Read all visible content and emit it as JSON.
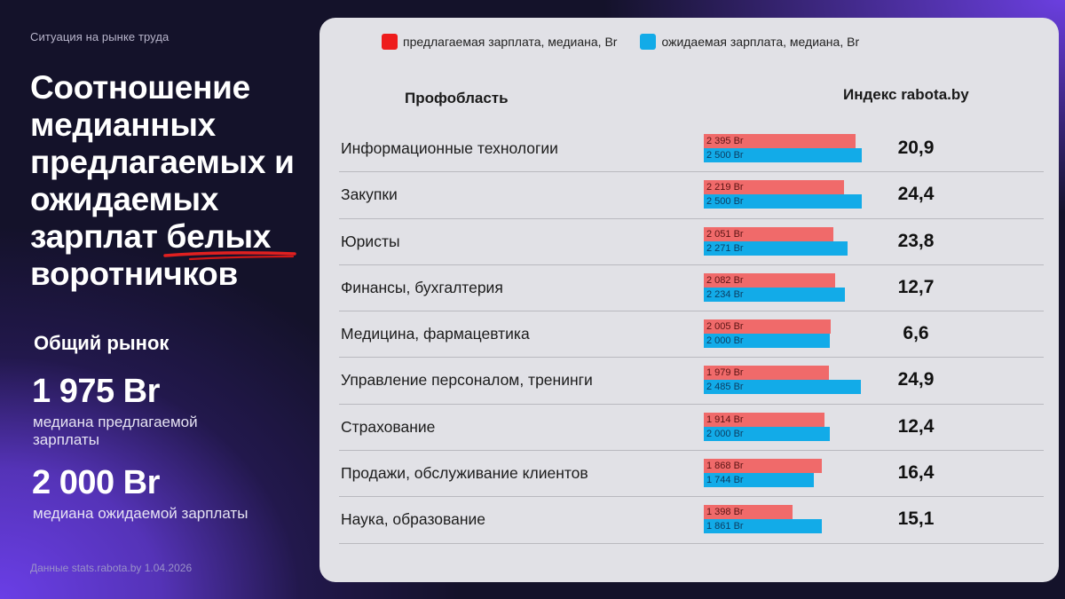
{
  "left": {
    "kicker": "Ситуация на рынке труда",
    "headline": {
      "line1": "Соотношение",
      "line2": "медианных",
      "line3": "предлагаемых и",
      "line4": "ожидаемых",
      "line5_prefix": "зарплат ",
      "line5_underlined": "белых",
      "line6": "воротничков",
      "underline_color": "#e02020"
    },
    "market_title": "Общий рынок",
    "stats": [
      {
        "value": "1 975 Br",
        "caption": "медиана предлагаемой зарплаты"
      },
      {
        "value": "2 000 Br",
        "caption": "медиана ожидаемой зарплаты"
      }
    ],
    "source": "Данные stats.rabota.by 1.04.2026"
  },
  "panel": {
    "legend": [
      {
        "label": "предлагаемая зарплата, медиана, Br",
        "color": "#ee1c1c"
      },
      {
        "label": "ожидаемая зарплата, медиана, Br",
        "color": "#12abe8"
      }
    ],
    "col_prof": "Профобласть",
    "col_index": "Индекс rabota.by",
    "bar_colors": {
      "offered": "#f06a6a",
      "expected": "#12abe8"
    },
    "bar_scale_max": 2500,
    "rows": [
      {
        "label": "Информационные технологии",
        "offered": "2 395 Br",
        "offered_v": 2395,
        "expected": "2 500 Br",
        "expected_v": 2500,
        "index": "20,9"
      },
      {
        "label": "Закупки",
        "offered": "2 219 Br",
        "offered_v": 2219,
        "expected": "2 500 Br",
        "expected_v": 2500,
        "index": "24,4"
      },
      {
        "label": "Юристы",
        "offered": "2 051 Br",
        "offered_v": 2051,
        "expected": "2 271 Br",
        "expected_v": 2271,
        "index": "23,8"
      },
      {
        "label": "Финансы, бухгалтерия",
        "offered": "2 082 Br",
        "offered_v": 2082,
        "expected": "2 234 Br",
        "expected_v": 2234,
        "index": "12,7"
      },
      {
        "label": "Медицина, фармацевтика",
        "offered": "2 005 Br",
        "offered_v": 2005,
        "expected": "2 000 Br",
        "expected_v": 2000,
        "index": "6,6"
      },
      {
        "label": "Управление персоналом, тренинги",
        "offered": "1 979 Br",
        "offered_v": 1979,
        "expected": "2 485 Br",
        "expected_v": 2485,
        "index": "24,9"
      },
      {
        "label": "Страхование",
        "offered": "1 914 Br",
        "offered_v": 1914,
        "expected": "2 000 Br",
        "expected_v": 2000,
        "index": "12,4"
      },
      {
        "label": "Продажи, обслуживание клиентов",
        "offered": "1 868 Br",
        "offered_v": 1868,
        "expected": "1 744 Br",
        "expected_v": 1744,
        "index": "16,4"
      },
      {
        "label": "Наука, образование",
        "offered": "1 398 Br",
        "offered_v": 1398,
        "expected": "1 861 Br",
        "expected_v": 1861,
        "index": "15,1"
      }
    ]
  },
  "chart_data": {
    "type": "bar",
    "orientation": "horizontal",
    "title": "Соотношение медианных предлагаемых и ожидаемых зарплат белых воротничков",
    "xlabel": "",
    "ylabel": "Профобласть",
    "categories": [
      "Информационные технологии",
      "Закупки",
      "Юристы",
      "Финансы, бухгалтерия",
      "Медицина, фармацевтика",
      "Управление персоналом, тренинги",
      "Страхование",
      "Продажи, обслуживание клиентов",
      "Наука, образование"
    ],
    "series": [
      {
        "name": "предлагаемая зарплата, медиана, Br",
        "color": "#f06a6a",
        "values": [
          2395,
          2219,
          2051,
          2082,
          2005,
          1979,
          1914,
          1868,
          1398
        ]
      },
      {
        "name": "ожидаемая зарплата, медиана, Br",
        "color": "#12abe8",
        "values": [
          2500,
          2500,
          2271,
          2234,
          2000,
          2485,
          2000,
          1744,
          1861
        ]
      }
    ],
    "extra_column": {
      "name": "Индекс rabota.by",
      "values": [
        20.9,
        24.4,
        23.8,
        12.7,
        6.6,
        24.9,
        12.4,
        16.4,
        15.1
      ]
    },
    "summary": {
      "offered_median_overall": 1975,
      "expected_median_overall": 2000,
      "unit": "Br"
    },
    "legend_position": "top",
    "grid": false
  }
}
